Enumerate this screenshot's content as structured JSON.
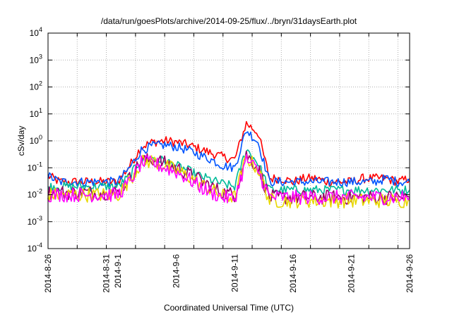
{
  "chart_data": {
    "type": "line",
    "title": "/data/run/goesPlots/archive/2014-09-25/flux/../bryn/31daysEarth.plot",
    "xlabel": "Coordinated Universal Time (UTC)",
    "ylabel": "cSv/day",
    "yscale": "log",
    "ylim": [
      0.0001,
      10000
    ],
    "y_ticks": [
      {
        "value": 0.0001,
        "label": "10",
        "exp": "-4"
      },
      {
        "value": 0.001,
        "label": "10",
        "exp": "-3"
      },
      {
        "value": 0.01,
        "label": "10",
        "exp": "-2"
      },
      {
        "value": 0.1,
        "label": "10",
        "exp": "-1"
      },
      {
        "value": 1,
        "label": "10",
        "exp": "0"
      },
      {
        "value": 10,
        "label": "10",
        "exp": "1"
      },
      {
        "value": 100,
        "label": "10",
        "exp": "2"
      },
      {
        "value": 1000,
        "label": "10",
        "exp": "3"
      },
      {
        "value": 10000,
        "label": "10",
        "exp": "4"
      }
    ],
    "xlim": [
      "2014-08-26",
      "2014-09-26"
    ],
    "x_ticks": [
      {
        "date": "2014-08-26",
        "label": "2014-8-26"
      },
      {
        "date": "2014-08-31",
        "label": "2014-8-31"
      },
      {
        "date": "2014-09-01",
        "label": "2014-9-1"
      },
      {
        "date": "2014-09-06",
        "label": "2014-9-6"
      },
      {
        "date": "2014-09-11",
        "label": "2014-9-11"
      },
      {
        "date": "2014-09-16",
        "label": "2014-9-16"
      },
      {
        "date": "2014-09-21",
        "label": "2014-9-21"
      },
      {
        "date": "2014-09-26",
        "label": "2014-9-26"
      }
    ],
    "grid": true,
    "x": [
      "2014-08-26",
      "2014-08-27",
      "2014-08-28",
      "2014-08-29",
      "2014-08-30",
      "2014-08-31",
      "2014-09-01",
      "2014-09-02",
      "2014-09-03",
      "2014-09-04",
      "2014-09-05",
      "2014-09-06",
      "2014-09-07",
      "2014-09-08",
      "2014-09-09",
      "2014-09-10",
      "2014-09-11",
      "2014-09-12",
      "2014-09-13",
      "2014-09-14",
      "2014-09-15",
      "2014-09-16",
      "2014-09-17",
      "2014-09-18",
      "2014-09-19",
      "2014-09-20",
      "2014-09-21",
      "2014-09-22",
      "2014-09-23",
      "2014-09-24",
      "2014-09-25",
      "2014-09-26"
    ],
    "series": [
      {
        "color": "#ff0000",
        "values": [
          0.05,
          0.03,
          0.03,
          0.03,
          0.03,
          0.03,
          0.03,
          0.12,
          0.6,
          0.9,
          1.0,
          0.9,
          0.7,
          0.5,
          0.35,
          0.25,
          0.2,
          4.5,
          2.0,
          0.04,
          0.04,
          0.03,
          0.04,
          0.04,
          0.03,
          0.03,
          0.03,
          0.04,
          0.04,
          0.04,
          0.03,
          0.04
        ]
      },
      {
        "color": "#0055ff",
        "values": [
          0.05,
          0.03,
          0.03,
          0.03,
          0.03,
          0.03,
          0.03,
          0.1,
          0.45,
          0.65,
          0.7,
          0.6,
          0.45,
          0.3,
          0.2,
          0.12,
          0.1,
          2.5,
          0.9,
          0.03,
          0.03,
          0.03,
          0.03,
          0.03,
          0.03,
          0.03,
          0.03,
          0.03,
          0.03,
          0.04,
          0.03,
          0.03
        ]
      },
      {
        "color": "#00bb99",
        "values": [
          0.02,
          0.02,
          0.02,
          0.02,
          0.02,
          0.02,
          0.02,
          0.05,
          0.2,
          0.22,
          0.18,
          0.12,
          0.08,
          0.05,
          0.035,
          0.025,
          0.02,
          0.5,
          0.15,
          0.015,
          0.015,
          0.015,
          0.015,
          0.015,
          0.015,
          0.015,
          0.015,
          0.015,
          0.015,
          0.015,
          0.015,
          0.015
        ]
      },
      {
        "color": "#990066",
        "values": [
          0.012,
          0.012,
          0.012,
          0.012,
          0.012,
          0.012,
          0.012,
          0.04,
          0.18,
          0.2,
          0.15,
          0.1,
          0.06,
          0.035,
          0.02,
          0.012,
          0.01,
          0.3,
          0.1,
          0.008,
          0.008,
          0.008,
          0.008,
          0.008,
          0.008,
          0.008,
          0.008,
          0.008,
          0.008,
          0.008,
          0.008,
          0.008
        ]
      },
      {
        "color": "#e8d800",
        "values": [
          0.01,
          0.01,
          0.01,
          0.01,
          0.01,
          0.01,
          0.01,
          0.035,
          0.16,
          0.18,
          0.12,
          0.08,
          0.05,
          0.025,
          0.015,
          0.009,
          0.008,
          0.25,
          0.09,
          0.006,
          0.006,
          0.006,
          0.006,
          0.006,
          0.006,
          0.006,
          0.006,
          0.006,
          0.006,
          0.006,
          0.006,
          0.006
        ]
      },
      {
        "color": "#ff00ff",
        "values": [
          0.01,
          0.01,
          0.01,
          0.01,
          0.01,
          0.01,
          0.01,
          0.03,
          0.15,
          0.15,
          0.1,
          0.07,
          0.04,
          0.02,
          0.012,
          0.008,
          0.007,
          0.2,
          0.08,
          0.008,
          0.008,
          0.008,
          0.008,
          0.008,
          0.008,
          0.008,
          0.008,
          0.008,
          0.008,
          0.008,
          0.008,
          0.008
        ]
      }
    ]
  }
}
